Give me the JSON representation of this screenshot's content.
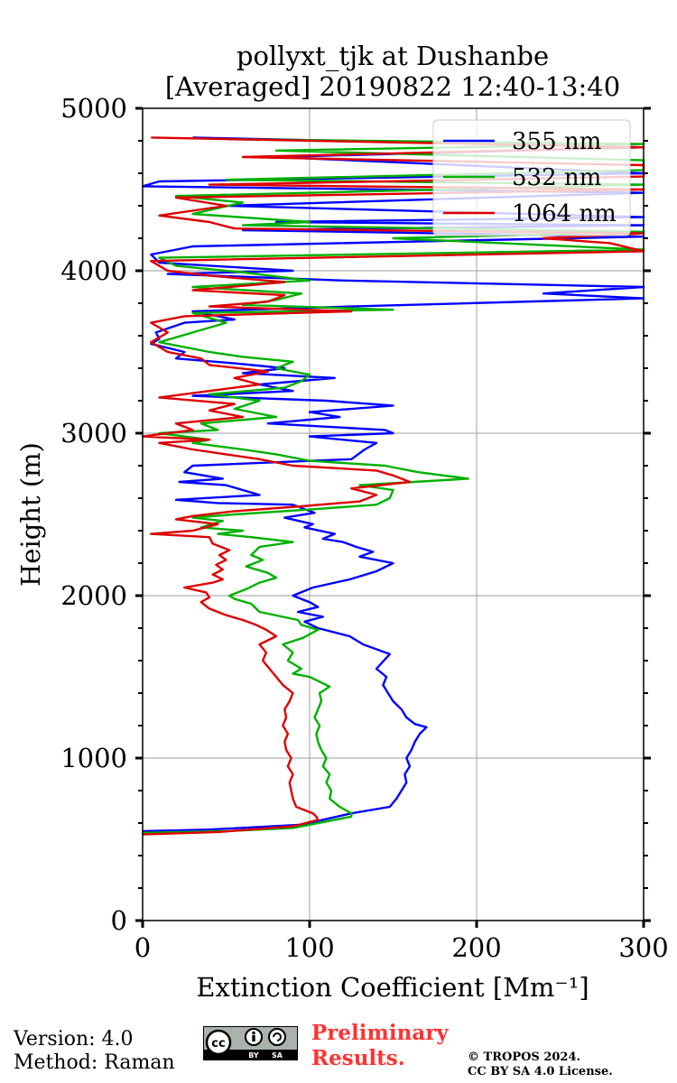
{
  "chart_data": {
    "type": "line",
    "title_line1": "pollyxt_tjk at Dushanbe",
    "title_line2": "[Averaged] 20190822 12:40-13:40",
    "xlabel": "Extinction Coefficient [Mm⁻¹]",
    "ylabel": "Height (m)",
    "xlim": [
      0,
      300
    ],
    "ylim": [
      0,
      5000
    ],
    "x_ticks": [
      0,
      100,
      200,
      300
    ],
    "y_ticks": [
      0,
      1000,
      2000,
      3000,
      4000,
      5000
    ],
    "grid": true,
    "legend_position": "top-right",
    "series": [
      {
        "name": "355 nm",
        "color": "#0000ff",
        "points": [
          [
            0,
            550
          ],
          [
            40,
            560
          ],
          [
            95,
            590
          ],
          [
            125,
            660
          ],
          [
            148,
            700
          ],
          [
            152,
            750
          ],
          [
            155,
            800
          ],
          [
            158,
            850
          ],
          [
            157,
            900
          ],
          [
            160,
            950
          ],
          [
            158,
            1000
          ],
          [
            161,
            1050
          ],
          [
            163,
            1100
          ],
          [
            166,
            1150
          ],
          [
            170,
            1190
          ],
          [
            163,
            1210
          ],
          [
            158,
            1250
          ],
          [
            155,
            1300
          ],
          [
            150,
            1350
          ],
          [
            147,
            1400
          ],
          [
            144,
            1450
          ],
          [
            146,
            1500
          ],
          [
            140,
            1550
          ],
          [
            148,
            1640
          ],
          [
            132,
            1700
          ],
          [
            124,
            1750
          ],
          [
            105,
            1800
          ],
          [
            97,
            1840
          ],
          [
            108,
            1870
          ],
          [
            93,
            1900
          ],
          [
            105,
            1930
          ],
          [
            100,
            1960
          ],
          [
            90,
            2000
          ],
          [
            102,
            2050
          ],
          [
            124,
            2100
          ],
          [
            140,
            2150
          ],
          [
            150,
            2200
          ],
          [
            130,
            2240
          ],
          [
            138,
            2270
          ],
          [
            128,
            2300
          ],
          [
            120,
            2330
          ],
          [
            108,
            2350
          ],
          [
            115,
            2380
          ],
          [
            97,
            2420
          ],
          [
            102,
            2440
          ],
          [
            85,
            2480
          ],
          [
            103,
            2510
          ],
          [
            90,
            2560
          ],
          [
            45,
            2570
          ],
          [
            20,
            2590
          ],
          [
            70,
            2620
          ],
          [
            50,
            2680
          ],
          [
            22,
            2700
          ],
          [
            48,
            2720
          ],
          [
            25,
            2760
          ],
          [
            30,
            2800
          ],
          [
            125,
            2840
          ],
          [
            133,
            2900
          ],
          [
            140,
            2940
          ],
          [
            100,
            2980
          ],
          [
            150,
            3000
          ],
          [
            145,
            3020
          ],
          [
            75,
            3060
          ],
          [
            118,
            3100
          ],
          [
            100,
            3130
          ],
          [
            150,
            3170
          ],
          [
            110,
            3200
          ],
          [
            30,
            3230
          ],
          [
            90,
            3260
          ],
          [
            70,
            3300
          ],
          [
            115,
            3340
          ],
          [
            60,
            3370
          ],
          [
            85,
            3400
          ],
          [
            55,
            3430
          ],
          [
            20,
            3460
          ],
          [
            25,
            3500
          ],
          [
            5,
            3550
          ],
          [
            10,
            3580
          ],
          [
            8,
            3620
          ],
          [
            25,
            3680
          ],
          [
            55,
            3700
          ],
          [
            30,
            3750
          ],
          [
            125,
            3780
          ],
          [
            300,
            3830
          ],
          [
            240,
            3860
          ],
          [
            300,
            3900
          ],
          [
            120,
            3940
          ],
          [
            15,
            3980
          ],
          [
            90,
            4000
          ],
          [
            10,
            4050
          ],
          [
            5,
            4100
          ],
          [
            30,
            4150
          ],
          [
            300,
            4210
          ],
          [
            60,
            4250
          ],
          [
            300,
            4280
          ],
          [
            80,
            4300
          ],
          [
            300,
            4330
          ],
          [
            50,
            4400
          ],
          [
            300,
            4480
          ],
          [
            0,
            4520
          ],
          [
            10,
            4550
          ],
          [
            300,
            4600
          ],
          [
            80,
            4700
          ],
          [
            300,
            4760
          ],
          [
            30,
            4820
          ]
        ]
      },
      {
        "name": "532 nm",
        "color": "#00b000",
        "points": [
          [
            0,
            540
          ],
          [
            50,
            550
          ],
          [
            90,
            570
          ],
          [
            125,
            640
          ],
          [
            125,
            660
          ],
          [
            118,
            700
          ],
          [
            112,
            750
          ],
          [
            113,
            800
          ],
          [
            110,
            850
          ],
          [
            112,
            900
          ],
          [
            108,
            950
          ],
          [
            110,
            1000
          ],
          [
            107,
            1050
          ],
          [
            105,
            1100
          ],
          [
            104,
            1150
          ],
          [
            106,
            1200
          ],
          [
            103,
            1250
          ],
          [
            105,
            1300
          ],
          [
            107,
            1350
          ],
          [
            106,
            1400
          ],
          [
            112,
            1440
          ],
          [
            104,
            1480
          ],
          [
            100,
            1500
          ],
          [
            90,
            1520
          ],
          [
            95,
            1550
          ],
          [
            87,
            1600
          ],
          [
            90,
            1650
          ],
          [
            84,
            1700
          ],
          [
            96,
            1740
          ],
          [
            105,
            1790
          ],
          [
            95,
            1820
          ],
          [
            93,
            1850
          ],
          [
            70,
            1900
          ],
          [
            65,
            1950
          ],
          [
            55,
            1980
          ],
          [
            52,
            2000
          ],
          [
            62,
            2040
          ],
          [
            70,
            2080
          ],
          [
            80,
            2110
          ],
          [
            75,
            2140
          ],
          [
            62,
            2180
          ],
          [
            72,
            2220
          ],
          [
            65,
            2250
          ],
          [
            70,
            2300
          ],
          [
            90,
            2330
          ],
          [
            65,
            2360
          ],
          [
            45,
            2380
          ],
          [
            60,
            2400
          ],
          [
            35,
            2420
          ],
          [
            48,
            2460
          ],
          [
            30,
            2480
          ],
          [
            55,
            2500
          ],
          [
            100,
            2530
          ],
          [
            140,
            2560
          ],
          [
            148,
            2600
          ],
          [
            150,
            2650
          ],
          [
            130,
            2680
          ],
          [
            195,
            2720
          ],
          [
            165,
            2760
          ],
          [
            145,
            2800
          ],
          [
            100,
            2830
          ],
          [
            80,
            2870
          ],
          [
            60,
            2900
          ],
          [
            30,
            2940
          ],
          [
            40,
            2960
          ],
          [
            10,
            3000
          ],
          [
            45,
            3020
          ],
          [
            35,
            3060
          ],
          [
            80,
            3100
          ],
          [
            55,
            3150
          ],
          [
            70,
            3200
          ],
          [
            40,
            3240
          ],
          [
            85,
            3280
          ],
          [
            95,
            3320
          ],
          [
            100,
            3360
          ],
          [
            80,
            3400
          ],
          [
            90,
            3440
          ],
          [
            60,
            3470
          ],
          [
            40,
            3500
          ],
          [
            10,
            3560
          ],
          [
            30,
            3620
          ],
          [
            50,
            3680
          ],
          [
            30,
            3740
          ],
          [
            150,
            3760
          ],
          [
            60,
            3790
          ],
          [
            80,
            3820
          ],
          [
            95,
            3860
          ],
          [
            30,
            3900
          ],
          [
            100,
            3940
          ],
          [
            60,
            3990
          ],
          [
            20,
            4030
          ],
          [
            10,
            4080
          ],
          [
            300,
            4130
          ],
          [
            150,
            4200
          ],
          [
            300,
            4240
          ],
          [
            60,
            4280
          ],
          [
            100,
            4300
          ],
          [
            30,
            4350
          ],
          [
            60,
            4420
          ],
          [
            20,
            4460
          ],
          [
            300,
            4530
          ],
          [
            50,
            4560
          ],
          [
            300,
            4620
          ],
          [
            300,
            4680
          ],
          [
            80,
            4740
          ],
          [
            300,
            4780
          ],
          [
            50,
            4810
          ]
        ]
      },
      {
        "name": "1064 nm",
        "color": "#dd0000",
        "points": [
          [
            0,
            530
          ],
          [
            45,
            545
          ],
          [
            90,
            580
          ],
          [
            105,
            620
          ],
          [
            104,
            640
          ],
          [
            102,
            660
          ],
          [
            92,
            700
          ],
          [
            90,
            750
          ],
          [
            89,
            800
          ],
          [
            88,
            850
          ],
          [
            90,
            900
          ],
          [
            87,
            950
          ],
          [
            89,
            1000
          ],
          [
            86,
            1050
          ],
          [
            85,
            1100
          ],
          [
            87,
            1150
          ],
          [
            84,
            1200
          ],
          [
            86,
            1250
          ],
          [
            85,
            1300
          ],
          [
            88,
            1350
          ],
          [
            90,
            1400
          ],
          [
            84,
            1450
          ],
          [
            80,
            1500
          ],
          [
            76,
            1550
          ],
          [
            72,
            1600
          ],
          [
            74,
            1650
          ],
          [
            70,
            1700
          ],
          [
            80,
            1750
          ],
          [
            74,
            1790
          ],
          [
            68,
            1820
          ],
          [
            60,
            1850
          ],
          [
            50,
            1880
          ],
          [
            40,
            1920
          ],
          [
            35,
            1960
          ],
          [
            40,
            1990
          ],
          [
            38,
            2020
          ],
          [
            25,
            2050
          ],
          [
            42,
            2080
          ],
          [
            48,
            2100
          ],
          [
            42,
            2130
          ],
          [
            48,
            2160
          ],
          [
            44,
            2190
          ],
          [
            50,
            2220
          ],
          [
            46,
            2250
          ],
          [
            52,
            2280
          ],
          [
            42,
            2320
          ],
          [
            40,
            2360
          ],
          [
            5,
            2380
          ],
          [
            30,
            2400
          ],
          [
            45,
            2440
          ],
          [
            20,
            2470
          ],
          [
            30,
            2490
          ],
          [
            55,
            2520
          ],
          [
            95,
            2550
          ],
          [
            130,
            2580
          ],
          [
            140,
            2620
          ],
          [
            125,
            2660
          ],
          [
            160,
            2700
          ],
          [
            150,
            2740
          ],
          [
            140,
            2770
          ],
          [
            90,
            2800
          ],
          [
            70,
            2840
          ],
          [
            50,
            2870
          ],
          [
            30,
            2900
          ],
          [
            10,
            2940
          ],
          [
            40,
            2960
          ],
          [
            0,
            2980
          ],
          [
            30,
            3020
          ],
          [
            20,
            3060
          ],
          [
            60,
            3100
          ],
          [
            40,
            3140
          ],
          [
            55,
            3180
          ],
          [
            10,
            3220
          ],
          [
            40,
            3260
          ],
          [
            70,
            3300
          ],
          [
            55,
            3340
          ],
          [
            75,
            3380
          ],
          [
            40,
            3420
          ],
          [
            35,
            3460
          ],
          [
            15,
            3500
          ],
          [
            5,
            3560
          ],
          [
            15,
            3620
          ],
          [
            5,
            3680
          ],
          [
            25,
            3720
          ],
          [
            125,
            3750
          ],
          [
            40,
            3780
          ],
          [
            75,
            3810
          ],
          [
            85,
            3850
          ],
          [
            30,
            3880
          ],
          [
            85,
            3930
          ],
          [
            40,
            3970
          ],
          [
            15,
            4000
          ],
          [
            5,
            4060
          ],
          [
            300,
            4120
          ],
          [
            280,
            4170
          ],
          [
            240,
            4200
          ],
          [
            300,
            4230
          ],
          [
            55,
            4260
          ],
          [
            40,
            4300
          ],
          [
            10,
            4340
          ],
          [
            50,
            4400
          ],
          [
            20,
            4450
          ],
          [
            300,
            4500
          ],
          [
            40,
            4530
          ],
          [
            300,
            4580
          ],
          [
            300,
            4650
          ],
          [
            60,
            4700
          ],
          [
            300,
            4760
          ],
          [
            5,
            4820
          ]
        ]
      }
    ]
  },
  "footer": {
    "version_text": "Version: 4.0",
    "method_text": "Method: Raman",
    "preliminary_line1": "Preliminary",
    "preliminary_line2": "Results.",
    "copyright_line1": "© TROPOS 2024.",
    "copyright_line2": "CC BY SA 4.0 License.",
    "cc_badge": {
      "cc": "cc",
      "by": "BY",
      "sa": "SA"
    }
  }
}
